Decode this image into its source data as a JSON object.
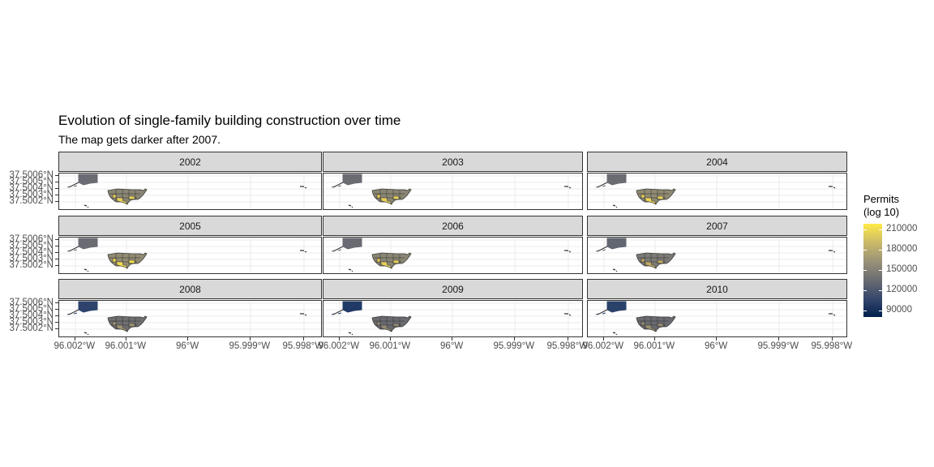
{
  "title": "Evolution of single-family building construction over time",
  "subtitle": "The map gets darker after 2007.",
  "panels": [
    {
      "year": "2002",
      "mainland": "#8a8674",
      "south": "#e7cf5a",
      "alaska": "#6b6c73"
    },
    {
      "year": "2003",
      "mainland": "#8a8674",
      "south": "#e7cf5a",
      "alaska": "#6b6c73"
    },
    {
      "year": "2004",
      "mainland": "#908a72",
      "south": "#ebd357",
      "alaska": "#6b6c73"
    },
    {
      "year": "2005",
      "mainland": "#918b72",
      "south": "#f3dc4f",
      "alaska": "#6b6c73"
    },
    {
      "year": "2006",
      "mainland": "#8a8674",
      "south": "#e5cd5b",
      "alaska": "#696a72"
    },
    {
      "year": "2007",
      "mainland": "#7b7a76",
      "south": "#bfa862",
      "alaska": "#626670"
    },
    {
      "year": "2008",
      "mainland": "#6f6f72",
      "south": "#9f9470",
      "alaska": "#2d436b"
    },
    {
      "year": "2009",
      "mainland": "#6a6b71",
      "south": "#8e8873",
      "alaska": "#213966"
    },
    {
      "year": "2010",
      "mainland": "#6a6b71",
      "south": "#958d71",
      "alaska": "#2a4169"
    }
  ],
  "y_ticks": [
    "37.5006°N",
    "37.5005°N",
    "37.5004°N",
    "37.5003°N",
    "37.5002°N"
  ],
  "x_ticks": [
    "96.002°W",
    "96.001°W",
    "96°W",
    "95.999°W",
    "95.998°W"
  ],
  "legend": {
    "title_line1": "Permits",
    "title_line2": "(log 10)",
    "labels": [
      "210000",
      "180000",
      "150000",
      "120000",
      "90000"
    ]
  },
  "colors": {
    "scale_low": "#00204d",
    "scale_mid": "#7c7b78",
    "scale_high": "#ffea46",
    "strip_bg": "#d9d9d9"
  }
}
